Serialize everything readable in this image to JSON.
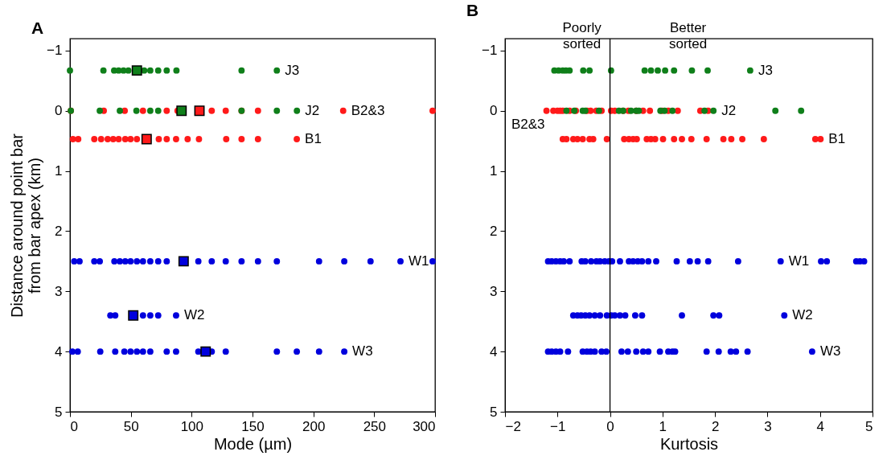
{
  "chart_data": [
    {
      "type": "scatter",
      "title": "A",
      "xlabel": "Mode (µm)",
      "ylabel": "Distance around point bar\nfrom bar apex (km)",
      "xlim": [
        0,
        300
      ],
      "xticks": [
        0,
        50,
        100,
        150,
        200,
        250,
        300
      ],
      "ylim": [
        5,
        -1.2
      ],
      "yticks": [
        -1,
        0,
        1,
        2,
        3,
        4,
        5
      ],
      "marker": "circle",
      "series": [
        {
          "color": "#0f7f1a",
          "x": [
            0,
            27.5,
            36.3,
            40,
            44,
            48,
            52,
            61,
            66,
            72.5,
            79.5,
            87.5,
            141,
            170
          ],
          "values": [
            -0.67,
            -0.67,
            -0.67,
            -0.67,
            -0.67,
            -0.67,
            null,
            -0.67,
            -0.67,
            -0.67,
            -0.67,
            -0.67,
            -0.67,
            -0.67
          ]
        },
        {
          "color": "#ff1a1a",
          "x": [
            0.7,
            27.8,
            45,
            60,
            79.5,
            88.4,
            116.5,
            128,
            141,
            154.5,
            224.5,
            298
          ],
          "values": [
            0,
            0,
            0,
            0,
            0,
            0,
            0,
            0,
            0,
            0,
            0,
            0
          ]
        },
        {
          "color": "#0f7f1a",
          "x": [
            0.7,
            24.5,
            41,
            54.6,
            66,
            72.5,
            141,
            170,
            186.5
          ],
          "values": [
            0,
            0,
            0,
            0,
            0,
            0,
            0,
            0,
            0
          ]
        },
        {
          "color": "#ff1a1a",
          "x": [
            2.4,
            6.8,
            20,
            25.6,
            31,
            35.5,
            40,
            45.4,
            49.8,
            55,
            73,
            79.5,
            87.2,
            96.7,
            106,
            128.4,
            141,
            154.5,
            186.4
          ],
          "values": [
            0.47,
            0.47,
            0.47,
            0.47,
            0.47,
            0.47,
            0.47,
            0.47,
            0.47,
            0.47,
            0.47,
            0.47,
            0.47,
            0.47,
            0.47,
            0.47,
            0.47,
            0.47,
            0.47
          ]
        },
        {
          "color": "#0000dd",
          "x": [
            3.5,
            7.9,
            20,
            24.5,
            36.5,
            41,
            45.4,
            49.8,
            55,
            60,
            66,
            72.5,
            79.5,
            105.5,
            116.5,
            128,
            141,
            154.5,
            170,
            204.7,
            225.4,
            247,
            271.6,
            298
          ],
          "values": [
            2.5,
            2.5,
            2.5,
            2.5,
            2.5,
            2.5,
            2.5,
            2.5,
            2.5,
            2.5,
            2.5,
            2.5,
            2.5,
            2.5,
            2.5,
            2.5,
            2.5,
            2.5,
            2.5,
            2.5,
            2.5,
            2.5,
            2.5,
            2.5
          ]
        },
        {
          "color": "#0000dd",
          "x": [
            33.2,
            37.2,
            48.2,
            60,
            66,
            72.5,
            87.2
          ],
          "values": [
            3.4,
            3.4,
            null,
            3.4,
            3.4,
            3.4,
            3.4
          ]
        },
        {
          "color": "#0000dd",
          "x": [
            2,
            6.4,
            24.9,
            37.2,
            44.7,
            49.8,
            55,
            60,
            66,
            79.5,
            87.2,
            105.5,
            116.5,
            128,
            170,
            186.4,
            204.7,
            225.4
          ],
          "values": [
            4,
            4,
            4,
            4,
            4,
            4,
            4,
            4,
            4,
            4,
            4,
            4,
            4,
            4,
            4,
            4,
            4,
            4
          ]
        },
        {
          "marker": "square",
          "x": [
            55,
            91.7,
            106.4,
            63,
            93.4,
            52,
            111.5
          ],
          "values": [
            -0.67,
            0,
            0,
            0.47,
            2.5,
            3.4,
            4
          ],
          "colors": [
            "#0f7f1a",
            "#0f7f1a",
            "#ff1a1a",
            "#ff1a1a",
            "#0000dd",
            "#0000dd",
            "#0000dd"
          ]
        }
      ],
      "annotations": [
        {
          "text": "J3",
          "x": 170,
          "y": -0.67
        },
        {
          "text": "J2",
          "x": 186.5,
          "y": 0
        },
        {
          "text": "B2&3",
          "x": 224.5,
          "y": 0
        },
        {
          "text": "B1",
          "x": 186.4,
          "y": 0.47
        },
        {
          "text": "W1",
          "x": 271.6,
          "y": 2.5
        },
        {
          "text": "W2",
          "x": 87.2,
          "y": 3.4
        },
        {
          "text": "W3",
          "x": 225.4,
          "y": 4
        }
      ]
    },
    {
      "type": "scatter",
      "title": "B",
      "xlabel": "Kurtosis",
      "xlim": [
        -2,
        5
      ],
      "xticks": [
        -2,
        -1,
        0,
        1,
        2,
        3,
        4,
        5
      ],
      "ylim": [
        5,
        -1.2
      ],
      "yticks": [
        -1,
        0,
        1,
        2,
        3,
        4,
        5
      ],
      "marker": "circle",
      "ref_lines": [
        {
          "axis": "x",
          "value": 0,
          "color": "#000000"
        }
      ],
      "series": [
        {
          "color": "#0f7f1a",
          "x": [
            -1.06,
            -0.98,
            -0.9,
            -0.84,
            -0.77,
            -0.51,
            -0.39,
            0.02,
            0.66,
            0.78,
            0.91,
            1.05,
            1.22,
            1.56,
            1.86,
            2.67
          ],
          "values": [
            -0.67,
            -0.67,
            -0.67,
            -0.67,
            -0.67,
            -0.67,
            -0.67,
            -0.67,
            -0.67,
            -0.67,
            -0.67,
            -0.67,
            -0.67,
            -0.67,
            -0.67,
            -0.67
          ]
        },
        {
          "color": "#ff1a1a",
          "x": [
            -1.21,
            -1.08,
            -1.0,
            -0.95,
            -0.9,
            -0.77,
            -0.65,
            -0.44,
            -0.37,
            -0.26,
            -0.16,
            0.02,
            0.09,
            0.25,
            0.35,
            0.5,
            0.63,
            0.76,
            0.99,
            1.11,
            1.29,
            1.72,
            1.87
          ],
          "values": [
            0,
            0,
            0,
            0,
            0,
            0,
            0,
            0,
            0,
            0,
            0,
            0,
            0,
            0,
            0,
            0,
            0,
            0,
            0,
            0,
            0,
            0,
            0
          ]
        },
        {
          "color": "#0f7f1a",
          "x": [
            -0.83,
            -0.68,
            -0.52,
            -0.47,
            -0.21,
            0.17,
            0.25,
            0.4,
            0.5,
            0.55,
            0.96,
            1.04,
            1.19,
            1.8,
            1.97,
            3.15,
            3.64
          ],
          "values": [
            0,
            0,
            0,
            0,
            0,
            0,
            0,
            0,
            0,
            0,
            0,
            0,
            0,
            0,
            0,
            0,
            0
          ]
        },
        {
          "color": "#ff1a1a",
          "x": [
            -0.9,
            -0.83,
            -0.7,
            -0.62,
            -0.52,
            -0.39,
            -0.32,
            -0.06,
            0.27,
            0.36,
            0.44,
            0.51,
            0.7,
            0.78,
            0.86,
            1.01,
            1.22,
            1.37,
            1.55,
            1.84,
            2.16,
            2.31,
            2.52,
            2.93,
            3.91,
            4.01
          ],
          "values": [
            0.47,
            0.47,
            0.47,
            0.47,
            0.47,
            0.47,
            0.47,
            0.47,
            0.47,
            0.47,
            0.47,
            0.47,
            0.47,
            0.47,
            0.47,
            0.47,
            0.47,
            0.47,
            0.47,
            0.47,
            0.47,
            0.47,
            0.47,
            0.47,
            0.47,
            0.47
          ]
        },
        {
          "color": "#0000dd",
          "x": [
            -1.18,
            -1.11,
            -1.03,
            -0.95,
            -0.88,
            -0.77,
            -0.54,
            -0.47,
            -0.36,
            -0.26,
            -0.19,
            -0.1,
            -0.02,
            0.04,
            0.19,
            0.36,
            0.44,
            0.53,
            0.61,
            0.73,
            0.88,
            1.27,
            1.52,
            1.67,
            1.87,
            2.44,
            3.25,
            4.02,
            4.13,
            4.69,
            4.76,
            4.84
          ],
          "values": [
            2.5,
            2.5,
            2.5,
            2.5,
            2.5,
            2.5,
            2.5,
            2.5,
            2.5,
            2.5,
            2.5,
            2.5,
            2.5,
            2.5,
            2.5,
            2.5,
            2.5,
            2.5,
            2.5,
            2.5,
            2.5,
            2.5,
            2.5,
            2.5,
            2.5,
            2.5,
            2.5,
            2.5,
            2.5,
            2.5,
            2.5,
            2.5
          ]
        },
        {
          "color": "#0000dd",
          "x": [
            -0.7,
            -0.62,
            -0.55,
            -0.47,
            -0.39,
            -0.29,
            -0.19,
            -0.06,
            0.02,
            0.09,
            0.19,
            0.29,
            0.48,
            0.61,
            1.37,
            1.97,
            2.08,
            3.32
          ],
          "values": [
            3.4,
            3.4,
            3.4,
            3.4,
            3.4,
            3.4,
            3.4,
            3.4,
            3.4,
            3.4,
            3.4,
            3.4,
            3.4,
            3.4,
            3.4,
            3.4,
            3.4,
            3.4
          ]
        },
        {
          "color": "#0000dd",
          "x": [
            -1.18,
            -1.11,
            -1.03,
            -0.95,
            -0.8,
            -0.52,
            -0.44,
            -0.37,
            -0.29,
            -0.21,
            -0.16,
            -0.07,
            0.22,
            0.34,
            0.5,
            0.63,
            0.73,
            0.95,
            1.11,
            1.19,
            1.24,
            1.84,
            2.07,
            2.3,
            2.4,
            2.62,
            3.85
          ],
          "values": [
            4,
            4,
            4,
            4,
            4,
            4,
            4,
            4,
            4,
            null,
            4,
            4,
            4,
            4,
            4,
            4,
            4,
            4,
            4,
            4,
            4,
            4,
            4,
            4,
            4,
            4,
            4
          ]
        }
      ],
      "annotations": [
        {
          "text": "J3",
          "x": 2.67,
          "y": -0.67
        },
        {
          "text": "J2",
          "x": 1.97,
          "y": 0
        },
        {
          "text": "B2&3",
          "x": -1.21,
          "y": 0
        },
        {
          "text": "B1",
          "x": 4.01,
          "y": 0.47
        },
        {
          "text": "W1",
          "x": 3.25,
          "y": 2.5
        },
        {
          "text": "W2",
          "x": 3.32,
          "y": 3.4
        },
        {
          "text": "W3",
          "x": 3.85,
          "y": 4
        },
        "Poorly\nsorted",
        "Better\nsorted"
      ]
    }
  ]
}
